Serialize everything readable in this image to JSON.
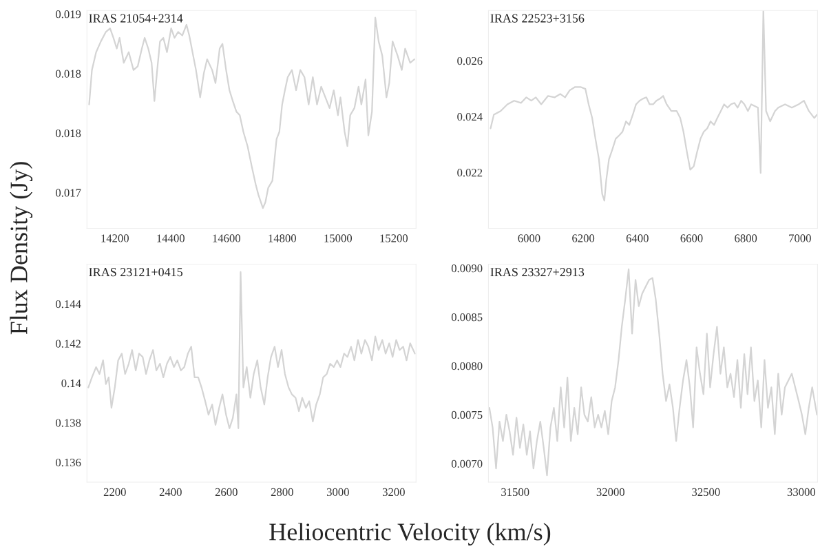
{
  "chart_data": [
    {
      "type": "line",
      "title": "IRAS 21054+2314",
      "ylabel": "Flux Density (Jy)",
      "xlim": [
        14100,
        15280
      ],
      "xticks": [
        14200,
        14400,
        14600,
        14800,
        15000,
        15200
      ],
      "ylim": [
        0.0172,
        0.01903
      ],
      "yticks": [
        {
          "value": 0.019,
          "label": "0.019"
        },
        {
          "value": 0.0185,
          "label": "0.018"
        },
        {
          "value": 0.018,
          "label": "0.018"
        },
        {
          "value": 0.0175,
          "label": "0.017"
        }
      ],
      "grid": false,
      "legend": false,
      "series": [
        {
          "color": "#d4d4d4",
          "x": [
            14108,
            14118,
            14133,
            14150,
            14168,
            14183,
            14195,
            14207,
            14217,
            14232,
            14250,
            14267,
            14282,
            14297,
            14307,
            14320,
            14332,
            14342,
            14352,
            14362,
            14374,
            14387,
            14402,
            14414,
            14427,
            14442,
            14457,
            14467,
            14481,
            14491,
            14506,
            14519,
            14531,
            14549,
            14561,
            14576,
            14586,
            14599,
            14611,
            14623,
            14636,
            14648,
            14661,
            14676,
            14691,
            14705,
            14715,
            14731,
            14740,
            14750,
            14765,
            14780,
            14790,
            14800,
            14810,
            14820,
            14835,
            14850,
            14865,
            14880,
            14895,
            14910,
            14925,
            14940,
            14955,
            14970,
            14985,
            15000,
            15009,
            15024,
            15034,
            15044,
            15059,
            15074,
            15084,
            15099,
            15109,
            15122,
            15134,
            15146,
            15159,
            15174,
            15184,
            15196,
            15214,
            15229,
            15241,
            15259,
            15274
          ],
          "values": [
            0.01824,
            0.01853,
            0.01868,
            0.01877,
            0.01885,
            0.01888,
            0.0188,
            0.01871,
            0.0188,
            0.01859,
            0.01868,
            0.01853,
            0.01856,
            0.01871,
            0.0188,
            0.01871,
            0.01859,
            0.01827,
            0.01853,
            0.01877,
            0.0188,
            0.01868,
            0.01888,
            0.0188,
            0.01885,
            0.01882,
            0.01891,
            0.01882,
            0.01865,
            0.01853,
            0.0183,
            0.0185,
            0.01862,
            0.01853,
            0.01842,
            0.01871,
            0.01875,
            0.01853,
            0.01836,
            0.01827,
            0.01818,
            0.01815,
            0.01801,
            0.01789,
            0.01772,
            0.01757,
            0.01748,
            0.01737,
            0.01742,
            0.01754,
            0.0176,
            0.01795,
            0.01801,
            0.01824,
            0.01836,
            0.01847,
            0.01853,
            0.01836,
            0.01853,
            0.01847,
            0.01824,
            0.01847,
            0.01824,
            0.01839,
            0.0183,
            0.01821,
            0.01836,
            0.01815,
            0.0183,
            0.01801,
            0.01789,
            0.01815,
            0.01821,
            0.01839,
            0.01824,
            0.01845,
            0.01798,
            0.01818,
            0.01897,
            0.01877,
            0.01865,
            0.0183,
            0.01842,
            0.01877,
            0.01865,
            0.01853,
            0.01871,
            0.01859,
            0.01862
          ]
        }
      ]
    },
    {
      "type": "line",
      "title": "IRAS 22523+3156",
      "xlim": [
        5850,
        7065
      ],
      "xticks": [
        6000,
        6200,
        6400,
        6600,
        6800,
        7000
      ],
      "ylim": [
        0.02,
        0.0278
      ],
      "yticks": [
        0.026,
        0.024,
        0.022
      ],
      "grid": false,
      "legend": false,
      "series": [
        {
          "color": "#d4d4d4",
          "x": [
            5858,
            5870,
            5895,
            5920,
            5945,
            5970,
            5990,
            6008,
            6025,
            6045,
            6070,
            6095,
            6115,
            6133,
            6150,
            6170,
            6190,
            6208,
            6220,
            6233,
            6245,
            6258,
            6270,
            6278,
            6285,
            6295,
            6308,
            6320,
            6333,
            6345,
            6358,
            6370,
            6383,
            6395,
            6408,
            6420,
            6433,
            6445,
            6458,
            6470,
            6483,
            6495,
            6508,
            6525,
            6545,
            6558,
            6570,
            6583,
            6595,
            6608,
            6620,
            6633,
            6645,
            6658,
            6670,
            6683,
            6695,
            6708,
            6720,
            6733,
            6745,
            6758,
            6770,
            6783,
            6795,
            6808,
            6820,
            6845,
            6855,
            6865,
            6875,
            6890,
            6908,
            6920,
            6945,
            6970,
            6995,
            7015,
            7033,
            7053,
            7063
          ],
          "values": [
            0.02358,
            0.02407,
            0.0242,
            0.02444,
            0.02457,
            0.02449,
            0.02469,
            0.02457,
            0.02469,
            0.02444,
            0.02474,
            0.02469,
            0.02481,
            0.02469,
            0.02494,
            0.02506,
            0.02506,
            0.02499,
            0.02444,
            0.02395,
            0.02321,
            0.02247,
            0.02123,
            0.02099,
            0.02173,
            0.02247,
            0.02284,
            0.02321,
            0.02333,
            0.02346,
            0.02383,
            0.0237,
            0.02407,
            0.02444,
            0.02457,
            0.02464,
            0.02469,
            0.02444,
            0.02444,
            0.02457,
            0.02464,
            0.02474,
            0.02444,
            0.0242,
            0.0242,
            0.02395,
            0.02346,
            0.02272,
            0.0221,
            0.02222,
            0.02272,
            0.02321,
            0.02346,
            0.02358,
            0.02383,
            0.0237,
            0.02395,
            0.0242,
            0.02444,
            0.02432,
            0.02444,
            0.02449,
            0.02432,
            0.02457,
            0.02444,
            0.0242,
            0.02444,
            0.02432,
            0.02198,
            0.0278,
            0.0242,
            0.02383,
            0.0242,
            0.02432,
            0.02444,
            0.02432,
            0.02444,
            0.02457,
            0.0242,
            0.02395,
            0.02407
          ]
        }
      ]
    },
    {
      "type": "line",
      "title": "IRAS 23121+0415",
      "xlabel": "Heliocentric Velocity (km/s)",
      "xlim": [
        2100,
        3280
      ],
      "xticks": [
        2200,
        2400,
        2600,
        2800,
        3000,
        3200
      ],
      "ylim": [
        0.135,
        0.146
      ],
      "yticks": [
        0.144,
        0.142,
        0.14,
        0.138,
        0.136
      ],
      "grid": false,
      "legend": false,
      "series": [
        {
          "color": "#d4d4d4",
          "x": [
            2105,
            2118,
            2133,
            2145,
            2158,
            2168,
            2178,
            2188,
            2200,
            2212,
            2225,
            2237,
            2250,
            2262,
            2275,
            2287,
            2300,
            2312,
            2324,
            2337,
            2349,
            2362,
            2374,
            2387,
            2399,
            2412,
            2424,
            2437,
            2449,
            2462,
            2474,
            2486,
            2499,
            2511,
            2524,
            2536,
            2549,
            2561,
            2574,
            2586,
            2599,
            2611,
            2623,
            2636,
            2643,
            2651,
            2661,
            2673,
            2686,
            2698,
            2711,
            2723,
            2736,
            2748,
            2760,
            2773,
            2785,
            2798,
            2810,
            2823,
            2835,
            2848,
            2860,
            2872,
            2885,
            2897,
            2910,
            2922,
            2935,
            2947,
            2960,
            2972,
            2985,
            2997,
            3009,
            3022,
            3034,
            3047,
            3059,
            3072,
            3084,
            3097,
            3109,
            3122,
            3134,
            3146,
            3159,
            3171,
            3184,
            3196,
            3209,
            3221,
            3234,
            3246,
            3259,
            3276
          ],
          "values": [
            0.13978,
            0.14029,
            0.14081,
            0.14046,
            0.14115,
            0.13995,
            0.14029,
            0.13875,
            0.13978,
            0.14115,
            0.14149,
            0.14046,
            0.14098,
            0.14167,
            0.14064,
            0.14149,
            0.14132,
            0.14046,
            0.14115,
            0.14167,
            0.14064,
            0.14098,
            0.14029,
            0.14098,
            0.14132,
            0.14081,
            0.14115,
            0.14064,
            0.14081,
            0.14149,
            0.14184,
            0.14029,
            0.14029,
            0.13978,
            0.13909,
            0.1384,
            0.13892,
            0.13789,
            0.13875,
            0.13943,
            0.1384,
            0.13772,
            0.13823,
            0.13943,
            0.13772,
            0.14561,
            0.13978,
            0.14081,
            0.13926,
            0.14046,
            0.14115,
            0.13978,
            0.13892,
            0.14029,
            0.14132,
            0.14184,
            0.14081,
            0.14167,
            0.14046,
            0.13978,
            0.13943,
            0.13926,
            0.13858,
            0.13926,
            0.13875,
            0.13909,
            0.13806,
            0.13892,
            0.13943,
            0.14029,
            0.14046,
            0.14098,
            0.14081,
            0.14115,
            0.14081,
            0.14149,
            0.14132,
            0.14184,
            0.14115,
            0.14218,
            0.14149,
            0.14218,
            0.14184,
            0.14115,
            0.14235,
            0.14167,
            0.14218,
            0.14149,
            0.14201,
            0.14132,
            0.14218,
            0.14167,
            0.14184,
            0.14115,
            0.14201,
            0.14149
          ]
        }
      ]
    },
    {
      "type": "line",
      "title": "IRAS 23327+2913",
      "xlim": [
        31360,
        33085
      ],
      "xticks": [
        31500,
        32000,
        32500,
        33000
      ],
      "ylim": [
        0.00681,
        0.00904
      ],
      "yticks": [
        {
          "value": 0.009,
          "label": "0.0090"
        },
        {
          "value": 0.0085,
          "label": "0.0085"
        },
        {
          "value": 0.008,
          "label": "0.0080"
        },
        {
          "value": 0.0075,
          "label": "0.0075"
        },
        {
          "value": 0.007,
          "label": "0.0070"
        }
      ],
      "grid": false,
      "legend": false,
      "series": [
        {
          "color": "#d4d4d4",
          "x": [
            31365,
            31382,
            31400,
            31418,
            31436,
            31454,
            31471,
            31489,
            31507,
            31525,
            31543,
            31561,
            31578,
            31596,
            31614,
            31632,
            31650,
            31667,
            31685,
            31703,
            31721,
            31739,
            31757,
            31774,
            31792,
            31810,
            31828,
            31846,
            31863,
            31881,
            31899,
            31917,
            31935,
            31952,
            31970,
            31988,
            32006,
            32024,
            32042,
            32059,
            32077,
            32095,
            32113,
            32131,
            32148,
            32166,
            32184,
            32202,
            32220,
            32237,
            32255,
            32273,
            32291,
            32309,
            32327,
            32344,
            32362,
            32380,
            32398,
            32416,
            32433,
            32451,
            32469,
            32487,
            32505,
            32522,
            32540,
            32558,
            32576,
            32594,
            32612,
            32629,
            32647,
            32665,
            32683,
            32701,
            32718,
            32736,
            32754,
            32772,
            32790,
            32807,
            32825,
            32843,
            32861,
            32879,
            32897,
            32914,
            32950,
            32986,
            33003,
            33021,
            33039,
            33057,
            33082
          ],
          "values": [
            0.00757,
            0.00737,
            0.00695,
            0.00743,
            0.00723,
            0.0075,
            0.00733,
            0.00709,
            0.00747,
            0.00716,
            0.0074,
            0.00709,
            0.00733,
            0.00695,
            0.00723,
            0.00743,
            0.00716,
            0.00688,
            0.00737,
            0.00757,
            0.00723,
            0.00778,
            0.00737,
            0.00788,
            0.00723,
            0.00757,
            0.0073,
            0.00778,
            0.0075,
            0.00743,
            0.00768,
            0.00737,
            0.0075,
            0.00737,
            0.00754,
            0.0073,
            0.00764,
            0.00778,
            0.00806,
            0.0084,
            0.00868,
            0.00899,
            0.00833,
            0.00888,
            0.00861,
            0.00874,
            0.00881,
            0.00888,
            0.0089,
            0.00868,
            0.00833,
            0.00792,
            0.00764,
            0.00781,
            0.00757,
            0.00723,
            0.00757,
            0.00785,
            0.00806,
            0.00778,
            0.00737,
            0.00819,
            0.00792,
            0.00771,
            0.00833,
            0.00778,
            0.00812,
            0.0084,
            0.00792,
            0.00819,
            0.00778,
            0.00792,
            0.00768,
            0.00806,
            0.00757,
            0.00812,
            0.00771,
            0.00819,
            0.00764,
            0.00785,
            0.00737,
            0.00806,
            0.00757,
            0.00778,
            0.0073,
            0.00792,
            0.0075,
            0.00778,
            0.00792,
            0.00764,
            0.0075,
            0.0073,
            0.00757,
            0.00778,
            0.0075
          ]
        }
      ]
    }
  ]
}
